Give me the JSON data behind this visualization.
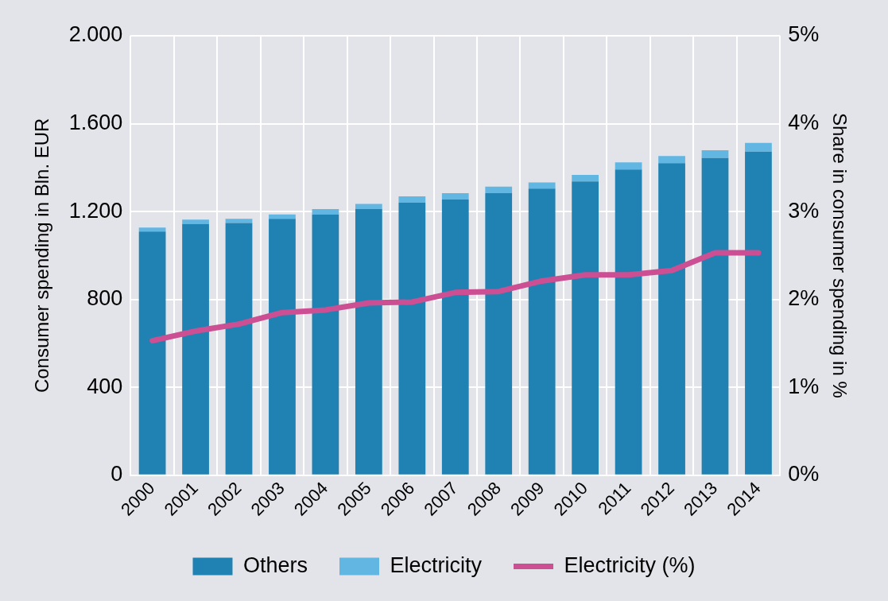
{
  "chart_data": {
    "type": "bar",
    "stacked": true,
    "categories": [
      "2000",
      "2001",
      "2002",
      "2003",
      "2004",
      "2005",
      "2006",
      "2007",
      "2008",
      "2009",
      "2010",
      "2011",
      "2012",
      "2013",
      "2014"
    ],
    "ylabel": "Consumer spending in Bln. EUR",
    "y2label": "Share in consumer spending in %",
    "ylim": [
      0,
      2000
    ],
    "yticks": [
      {
        "value": 0,
        "label": "0"
      },
      {
        "value": 400,
        "label": "400"
      },
      {
        "value": 800,
        "label": "800"
      },
      {
        "value": 1200,
        "label": "1.200"
      },
      {
        "value": 1600,
        "label": "1.600"
      },
      {
        "value": 2000,
        "label": "2.000"
      }
    ],
    "y2lim": [
      0,
      5
    ],
    "y2ticks": [
      {
        "value": 0,
        "label": "0%"
      },
      {
        "value": 1,
        "label": "1%"
      },
      {
        "value": 2,
        "label": "2%"
      },
      {
        "value": 3,
        "label": "3%"
      },
      {
        "value": 4,
        "label": "4%"
      },
      {
        "value": 5,
        "label": "5%"
      }
    ],
    "series": [
      {
        "name": "Others",
        "color": "#1f82b2",
        "values": [
          1109,
          1143,
          1148,
          1167,
          1187,
          1211,
          1240,
          1255,
          1284,
          1304,
          1337,
          1391,
          1420,
          1444,
          1473
        ]
      },
      {
        "name": "Electricity",
        "color": "#62b6e2",
        "values": [
          18,
          20,
          19,
          20,
          24,
          24,
          29,
          29,
          29,
          28,
          30,
          33,
          33,
          35,
          39
        ]
      },
      {
        "name": "Electricity (%)",
        "type": "line",
        "axis": "y2",
        "color": "#cc4f93",
        "values": [
          1.53,
          1.64,
          1.72,
          1.85,
          1.88,
          1.96,
          1.97,
          2.08,
          2.09,
          2.21,
          2.28,
          2.28,
          2.33,
          2.53,
          2.53
        ]
      }
    ],
    "grid": true,
    "legend": "bottom",
    "marker": "none",
    "line_style": "solid"
  }
}
